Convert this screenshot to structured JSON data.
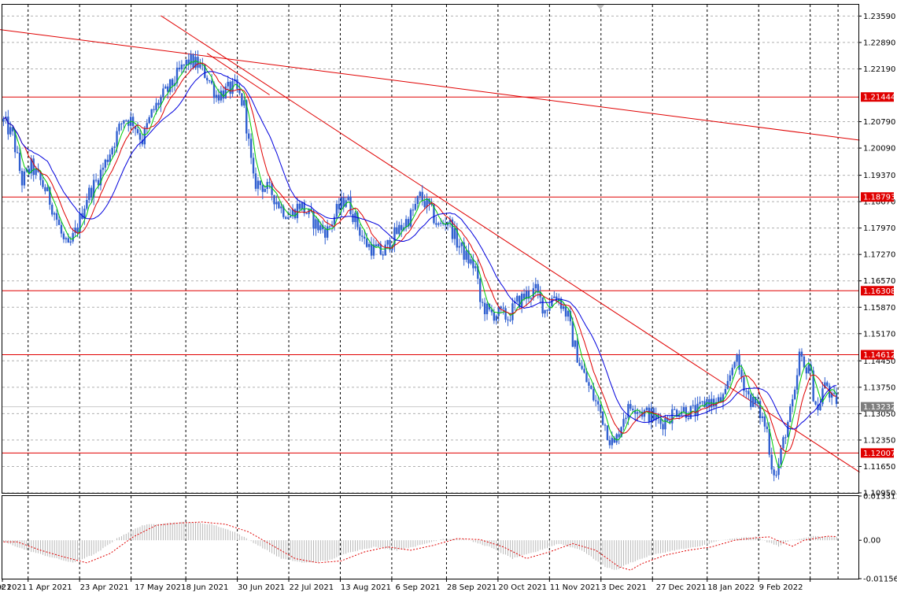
{
  "chart_data": {
    "type": "candlestick",
    "symbol_pair_hint": "EUR/USD",
    "main_panel": {
      "y_range": [
        1.1095,
        1.2389
      ],
      "y_ticks": [
        "1.23590",
        "1.22890",
        "1.22190",
        "1.20790",
        "1.20090",
        "1.19370",
        "1.18670",
        "1.17970",
        "1.17270",
        "1.16570",
        "1.15870",
        "1.15170",
        "1.14450",
        "1.13750",
        "1.13050",
        "1.12350",
        "1.11650",
        "1.10950"
      ],
      "current_price_label": "1.13232",
      "current_price": 1.13232,
      "horizontal_levels": [
        {
          "label": "1.21444",
          "value": 1.21444
        },
        {
          "label": "1.18793",
          "value": 1.18793
        },
        {
          "label": "1.16308",
          "value": 1.16308
        },
        {
          "label": "1.14612",
          "value": 1.14612
        },
        {
          "label": "1.12007",
          "value": 1.12007
        }
      ],
      "trendlines": [
        {
          "from": {
            "bar": -4,
            "price": 1.2325
          },
          "to": {
            "bar": 370,
            "price": 1.203
          }
        },
        {
          "from": {
            "bar": 68,
            "price": 1.236
          },
          "to": {
            "bar": 370,
            "price": 1.115
          }
        },
        {
          "from": {
            "bar": 88,
            "price": 1.226
          },
          "to": {
            "bar": 115,
            "price": 1.215
          }
        }
      ],
      "moving_averages": [
        {
          "color": "#00cc00",
          "period": 5
        },
        {
          "color": "#e00000",
          "period": 10
        },
        {
          "color": "#0000dd",
          "period": 20
        }
      ],
      "candle_color": "#2f5fd0",
      "close_path": [
        [
          0,
          1.208
        ],
        [
          4,
          1.204
        ],
        [
          8,
          1.192
        ],
        [
          12,
          1.196
        ],
        [
          18,
          1.19
        ],
        [
          22,
          1.184
        ],
        [
          26,
          1.176
        ],
        [
          28,
          1.174
        ],
        [
          32,
          1.18
        ],
        [
          36,
          1.188
        ],
        [
          40,
          1.192
        ],
        [
          44,
          1.197
        ],
        [
          48,
          1.203
        ],
        [
          52,
          1.209
        ],
        [
          56,
          1.208
        ],
        [
          60,
          1.203
        ],
        [
          64,
          1.21
        ],
        [
          68,
          1.214
        ],
        [
          72,
          1.217
        ],
        [
          76,
          1.221
        ],
        [
          80,
          1.224
        ],
        [
          84,
          1.223
        ],
        [
          88,
          1.22
        ],
        [
          92,
          1.215
        ],
        [
          96,
          1.216
        ],
        [
          100,
          1.217
        ],
        [
          104,
          1.212
        ],
        [
          106,
          1.202
        ],
        [
          108,
          1.192
        ],
        [
          112,
          1.191
        ],
        [
          116,
          1.189
        ],
        [
          120,
          1.185
        ],
        [
          124,
          1.183
        ],
        [
          128,
          1.186
        ],
        [
          132,
          1.183
        ],
        [
          136,
          1.18
        ],
        [
          140,
          1.179
        ],
        [
          144,
          1.184
        ],
        [
          148,
          1.188
        ],
        [
          152,
          1.182
        ],
        [
          156,
          1.176
        ],
        [
          160,
          1.174
        ],
        [
          164,
          1.173
        ],
        [
          168,
          1.177
        ],
        [
          172,
          1.18
        ],
        [
          176,
          1.183
        ],
        [
          180,
          1.188
        ],
        [
          184,
          1.185
        ],
        [
          188,
          1.18
        ],
        [
          192,
          1.182
        ],
        [
          196,
          1.176
        ],
        [
          200,
          1.172
        ],
        [
          204,
          1.169
        ],
        [
          206,
          1.16
        ],
        [
          210,
          1.157
        ],
        [
          214,
          1.157
        ],
        [
          218,
          1.156
        ],
        [
          222,
          1.16
        ],
        [
          226,
          1.162
        ],
        [
          230,
          1.163
        ],
        [
          234,
          1.158
        ],
        [
          238,
          1.162
        ],
        [
          240,
          1.161
        ],
        [
          244,
          1.156
        ],
        [
          246,
          1.15
        ],
        [
          250,
          1.142
        ],
        [
          254,
          1.136
        ],
        [
          258,
          1.131
        ],
        [
          262,
          1.124
        ],
        [
          264,
          1.122
        ],
        [
          268,
          1.13
        ],
        [
          272,
          1.133
        ],
        [
          276,
          1.131
        ],
        [
          280,
          1.13
        ],
        [
          284,
          1.128
        ],
        [
          288,
          1.13
        ],
        [
          292,
          1.132
        ],
        [
          296,
          1.131
        ],
        [
          300,
          1.131
        ],
        [
          304,
          1.134
        ],
        [
          308,
          1.133
        ],
        [
          312,
          1.135
        ],
        [
          316,
          1.146
        ],
        [
          318,
          1.142
        ],
        [
          322,
          1.135
        ],
        [
          326,
          1.132
        ],
        [
          330,
          1.126
        ],
        [
          332,
          1.117
        ],
        [
          334,
          1.114
        ],
        [
          336,
          1.12
        ],
        [
          338,
          1.126
        ],
        [
          342,
          1.135
        ],
        [
          344,
          1.146
        ],
        [
          346,
          1.142
        ],
        [
          348,
          1.144
        ],
        [
          350,
          1.136
        ],
        [
          352,
          1.131
        ],
        [
          354,
          1.137
        ],
        [
          356,
          1.138
        ],
        [
          358,
          1.134
        ],
        [
          360,
          1.134
        ]
      ]
    },
    "indicator_panel": {
      "y_ticks": [
        "0.013311",
        "0.00",
        "-0.011562"
      ],
      "y_range": [
        -0.011562,
        0.013311
      ],
      "histogram_color": "#b8b8b8",
      "signal_color": "#e00000",
      "macd_path": [
        [
          0,
          -0.0005
        ],
        [
          10,
          -0.003
        ],
        [
          20,
          -0.005
        ],
        [
          30,
          -0.0068
        ],
        [
          40,
          -0.004
        ],
        [
          50,
          0.001
        ],
        [
          60,
          0.0045
        ],
        [
          70,
          0.0052
        ],
        [
          80,
          0.0055
        ],
        [
          90,
          0.0048
        ],
        [
          100,
          0.0025
        ],
        [
          110,
          -0.0015
        ],
        [
          120,
          -0.0055
        ],
        [
          130,
          -0.0068
        ],
        [
          140,
          -0.0062
        ],
        [
          150,
          -0.0035
        ],
        [
          160,
          -0.002
        ],
        [
          170,
          -0.003
        ],
        [
          180,
          -0.0015
        ],
        [
          190,
          0.0005
        ],
        [
          200,
          0.0002
        ],
        [
          210,
          -0.002
        ],
        [
          220,
          -0.0055
        ],
        [
          230,
          -0.0035
        ],
        [
          240,
          -0.001
        ],
        [
          250,
          -0.003
        ],
        [
          260,
          -0.008
        ],
        [
          265,
          -0.009
        ],
        [
          270,
          -0.007
        ],
        [
          280,
          -0.0045
        ],
        [
          290,
          -0.003
        ],
        [
          300,
          -0.002
        ],
        [
          310,
          0.0
        ],
        [
          320,
          0.0008
        ],
        [
          325,
          0.001
        ],
        [
          330,
          -0.0005
        ],
        [
          335,
          -0.0018
        ],
        [
          340,
          0.0
        ],
        [
          350,
          0.0012
        ],
        [
          360,
          0.001
        ]
      ]
    },
    "x_ticks": [
      {
        "label": "2021",
        "bar": 0
      },
      {
        "label": "10 Mar 2021",
        "bar": 8
      },
      {
        "label": "1 Apr 2021",
        "bar": 24
      },
      {
        "label": "23 Apr 2021",
        "bar": 40
      },
      {
        "label": "17 May 2021",
        "bar": 57
      },
      {
        "label": "8 Jun 2021",
        "bar": 73
      },
      {
        "label": "30 Jun 2021",
        "bar": 89
      },
      {
        "label": "22 Jul 2021",
        "bar": 105
      },
      {
        "label": "13 Aug 2021",
        "bar": 121
      },
      {
        "label": "6 Sep 2021",
        "bar": 138
      },
      {
        "label": "28 Sep 2021",
        "bar": 154
      },
      {
        "label": "20 Oct 2021",
        "bar": 170
      },
      {
        "label": "11 Nov 2021",
        "bar": 186
      },
      {
        "label": "3 Dec 2021",
        "bar": 202
      },
      {
        "label": "27 Dec 2021",
        "bar": 219
      },
      {
        "label": "18 Jan 2022",
        "bar": 235
      },
      {
        "label": "9 Feb 2022",
        "bar": 251
      }
    ],
    "total_bars": 370,
    "grid": true
  },
  "colors": {
    "level_line": "#e00000",
    "level_tag": "#e00000",
    "price_tag": "#7d7d7d",
    "grid": "#b0b0b0"
  }
}
